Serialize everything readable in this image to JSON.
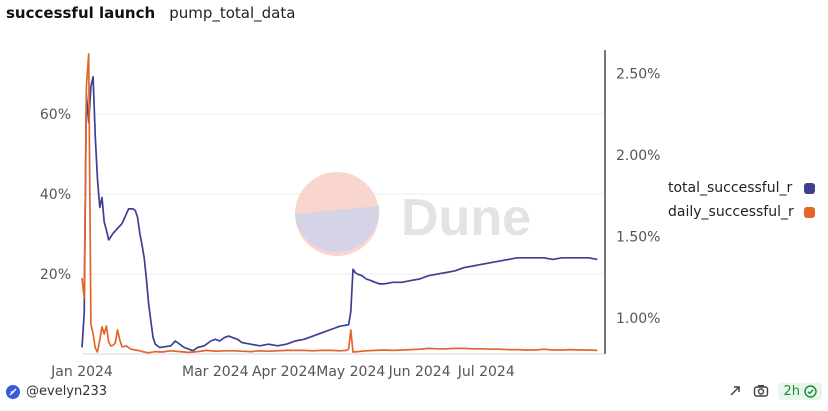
{
  "header": {
    "title": "successful launch",
    "subtitle": "pump_total_data"
  },
  "watermark": {
    "text": "Dune"
  },
  "chart_data": {
    "type": "line",
    "title": "successful launch",
    "x_tick_labels": [
      "Jan 2024",
      "Mar 2024",
      "Apr 2024",
      "May 2024",
      "Jun 2024",
      "Jul 2024"
    ],
    "x_tick_days": [
      0,
      60,
      91,
      121,
      152,
      182
    ],
    "x_range_days": [
      0,
      235
    ],
    "left_axis": {
      "ticks": [
        20,
        40,
        60
      ],
      "tick_labels": [
        "20%",
        "40%",
        "60%"
      ],
      "range": [
        0,
        75
      ]
    },
    "right_axis": {
      "ticks": [
        1.0,
        1.5,
        2.0,
        2.5
      ],
      "tick_labels": [
        "1.00%",
        "1.50%",
        "2.00%",
        "2.50%"
      ],
      "range": [
        0.78,
        2.62
      ]
    },
    "series": [
      {
        "name": "total_successful_r",
        "color": "#3f3f8f",
        "axis": "right",
        "points": [
          [
            0,
            0.82
          ],
          [
            1,
            1.03
          ],
          [
            2,
            2.37
          ],
          [
            3,
            2.2
          ],
          [
            4,
            2.42
          ],
          [
            5,
            2.48
          ],
          [
            6,
            2.11
          ],
          [
            7,
            1.85
          ],
          [
            8,
            1.68
          ],
          [
            9,
            1.74
          ],
          [
            10,
            1.59
          ],
          [
            11,
            1.54
          ],
          [
            12,
            1.48
          ],
          [
            14,
            1.52
          ],
          [
            16,
            1.55
          ],
          [
            18,
            1.58
          ],
          [
            20,
            1.64
          ],
          [
            21,
            1.67
          ],
          [
            22,
            1.67
          ],
          [
            23,
            1.67
          ],
          [
            24,
            1.66
          ],
          [
            25,
            1.62
          ],
          [
            26,
            1.52
          ],
          [
            27,
            1.45
          ],
          [
            28,
            1.37
          ],
          [
            29,
            1.24
          ],
          [
            30,
            1.09
          ],
          [
            31,
            0.98
          ],
          [
            32,
            0.88
          ],
          [
            33,
            0.84
          ],
          [
            35,
            0.82
          ],
          [
            40,
            0.83
          ],
          [
            42,
            0.86
          ],
          [
            44,
            0.84
          ],
          [
            46,
            0.82
          ],
          [
            48,
            0.81
          ],
          [
            50,
            0.8
          ],
          [
            52,
            0.82
          ],
          [
            55,
            0.83
          ],
          [
            58,
            0.86
          ],
          [
            60,
            0.87
          ],
          [
            62,
            0.86
          ],
          [
            64,
            0.88
          ],
          [
            66,
            0.89
          ],
          [
            68,
            0.88
          ],
          [
            70,
            0.87
          ],
          [
            72,
            0.85
          ],
          [
            76,
            0.84
          ],
          [
            80,
            0.83
          ],
          [
            84,
            0.84
          ],
          [
            88,
            0.83
          ],
          [
            92,
            0.84
          ],
          [
            96,
            0.86
          ],
          [
            100,
            0.87
          ],
          [
            104,
            0.89
          ],
          [
            108,
            0.91
          ],
          [
            112,
            0.93
          ],
          [
            116,
            0.95
          ],
          [
            120,
            0.96
          ],
          [
            121,
            1.04
          ],
          [
            122,
            1.3
          ],
          [
            123,
            1.28
          ],
          [
            124,
            1.27
          ],
          [
            126,
            1.26
          ],
          [
            128,
            1.24
          ],
          [
            130,
            1.23
          ],
          [
            132,
            1.22
          ],
          [
            134,
            1.21
          ],
          [
            136,
            1.21
          ],
          [
            140,
            1.22
          ],
          [
            144,
            1.22
          ],
          [
            148,
            1.23
          ],
          [
            152,
            1.24
          ],
          [
            156,
            1.26
          ],
          [
            160,
            1.27
          ],
          [
            164,
            1.28
          ],
          [
            168,
            1.29
          ],
          [
            172,
            1.31
          ],
          [
            176,
            1.32
          ],
          [
            180,
            1.33
          ],
          [
            184,
            1.34
          ],
          [
            188,
            1.35
          ],
          [
            192,
            1.36
          ],
          [
            196,
            1.37
          ],
          [
            200,
            1.37
          ],
          [
            204,
            1.37
          ],
          [
            208,
            1.37
          ],
          [
            212,
            1.36
          ],
          [
            216,
            1.37
          ],
          [
            220,
            1.37
          ],
          [
            224,
            1.37
          ],
          [
            228,
            1.37
          ],
          [
            232,
            1.36
          ]
        ]
      },
      {
        "name": "daily_successful_r",
        "color": "#e2652c",
        "axis": "left",
        "points": [
          [
            0,
            19.0
          ],
          [
            1,
            14.0
          ],
          [
            2,
            67.0
          ],
          [
            3,
            75.0
          ],
          [
            4,
            7.5
          ],
          [
            5,
            5.0
          ],
          [
            6,
            1.5
          ],
          [
            7,
            0.5
          ],
          [
            8,
            3.5
          ],
          [
            9,
            6.8
          ],
          [
            10,
            5.0
          ],
          [
            11,
            7.0
          ],
          [
            12,
            3.0
          ],
          [
            13,
            2.0
          ],
          [
            14,
            2.2
          ],
          [
            15,
            2.8
          ],
          [
            16,
            6.0
          ],
          [
            17,
            3.5
          ],
          [
            18,
            1.8
          ],
          [
            20,
            2.0
          ],
          [
            22,
            1.2
          ],
          [
            24,
            1.0
          ],
          [
            26,
            0.8
          ],
          [
            28,
            0.5
          ],
          [
            30,
            0.3
          ],
          [
            33,
            0.6
          ],
          [
            36,
            0.5
          ],
          [
            40,
            0.8
          ],
          [
            44,
            0.6
          ],
          [
            48,
            0.4
          ],
          [
            52,
            0.6
          ],
          [
            56,
            0.9
          ],
          [
            60,
            0.7
          ],
          [
            64,
            0.8
          ],
          [
            68,
            0.8
          ],
          [
            72,
            0.7
          ],
          [
            76,
            0.6
          ],
          [
            80,
            0.8
          ],
          [
            84,
            0.7
          ],
          [
            88,
            0.8
          ],
          [
            92,
            0.9
          ],
          [
            96,
            0.9
          ],
          [
            100,
            0.9
          ],
          [
            104,
            0.8
          ],
          [
            108,
            0.9
          ],
          [
            112,
            0.9
          ],
          [
            116,
            0.8
          ],
          [
            119,
            0.9
          ],
          [
            120,
            1.2
          ],
          [
            121,
            6.0
          ],
          [
            122,
            0.5
          ],
          [
            124,
            0.6
          ],
          [
            128,
            0.8
          ],
          [
            132,
            0.9
          ],
          [
            136,
            1.0
          ],
          [
            140,
            0.9
          ],
          [
            144,
            1.0
          ],
          [
            148,
            1.1
          ],
          [
            152,
            1.2
          ],
          [
            156,
            1.4
          ],
          [
            160,
            1.3
          ],
          [
            164,
            1.3
          ],
          [
            168,
            1.4
          ],
          [
            172,
            1.4
          ],
          [
            176,
            1.3
          ],
          [
            180,
            1.3
          ],
          [
            184,
            1.2
          ],
          [
            188,
            1.2
          ],
          [
            192,
            1.1
          ],
          [
            196,
            1.1
          ],
          [
            200,
            1.0
          ],
          [
            204,
            1.0
          ],
          [
            208,
            1.2
          ],
          [
            212,
            1.0
          ],
          [
            216,
            1.0
          ],
          [
            220,
            1.1
          ],
          [
            224,
            1.0
          ],
          [
            228,
            1.0
          ],
          [
            232,
            0.9
          ]
        ]
      }
    ],
    "legend_position": "right",
    "grid": true
  },
  "footer": {
    "author": "@evelyn233",
    "refresh_badge": "2h",
    "icons": [
      "share-icon",
      "camera-icon",
      "check-circle-icon"
    ]
  }
}
